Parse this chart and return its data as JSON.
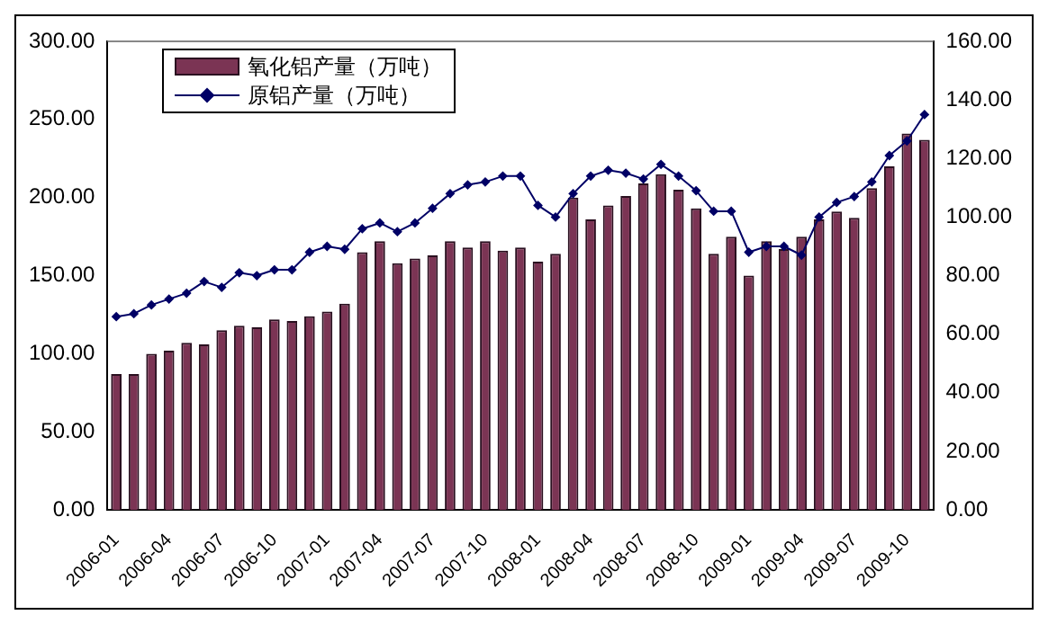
{
  "chart_data": {
    "type": "bar",
    "categories": [
      "2006-01",
      null,
      null,
      "2006-04",
      null,
      null,
      "2006-07",
      null,
      null,
      "2006-10",
      null,
      null,
      "2007-01",
      null,
      null,
      "2007-04",
      null,
      null,
      "2007-07",
      null,
      null,
      "2007-10",
      null,
      null,
      "2008-01",
      null,
      null,
      "2008-04",
      null,
      null,
      "2008-07",
      null,
      null,
      "2008-10",
      null,
      null,
      "2009-01",
      null,
      null,
      "2009-04",
      null,
      null,
      "2009-07",
      null,
      null,
      "2009-10",
      null
    ],
    "series": [
      {
        "name": "氧化铝产量（万吨）",
        "color": "#7b3454",
        "values": [
          87,
          87,
          100,
          102,
          107,
          106,
          115,
          118,
          117,
          122,
          121,
          124,
          127,
          132,
          165,
          172,
          158,
          161,
          163,
          172,
          168,
          172,
          166,
          168,
          159,
          164,
          200,
          186,
          195,
          201,
          209,
          215,
          205,
          193,
          164,
          175,
          150,
          172,
          167,
          175,
          186,
          191,
          187,
          206,
          220,
          241,
          237
        ]
      },
      {
        "name": "原铝产量（万吨）",
        "type": "line",
        "axis": "y2",
        "color": "#000066",
        "values": [
          66,
          67,
          70,
          72,
          74,
          78,
          76,
          81,
          80,
          82,
          82,
          88,
          90,
          89,
          96,
          98,
          95,
          98,
          103,
          108,
          111,
          112,
          114,
          114,
          104,
          100,
          108,
          114,
          116,
          115,
          113,
          118,
          114,
          109,
          102,
          102,
          88,
          90,
          90,
          87,
          100,
          105,
          107,
          112,
          121,
          126,
          135
        ]
      }
    ],
    "ylim": [
      0,
      300
    ],
    "yticks": [
      {
        "value": 0,
        "label": "0.00"
      },
      {
        "value": 50,
        "label": "50.00"
      },
      {
        "value": 100,
        "label": "100.00"
      },
      {
        "value": 150,
        "label": "150.00"
      },
      {
        "value": 200,
        "label": "200.00"
      },
      {
        "value": 250,
        "label": "250.00"
      },
      {
        "value": 300,
        "label": "300.00"
      }
    ],
    "y2lim": [
      0,
      160
    ],
    "y2ticks": [
      {
        "value": 0,
        "label": "0.00"
      },
      {
        "value": 20,
        "label": "20.00"
      },
      {
        "value": 40,
        "label": "40.00"
      },
      {
        "value": 60,
        "label": "60.00"
      },
      {
        "value": 80,
        "label": "80.00"
      },
      {
        "value": 100,
        "label": "100.00"
      },
      {
        "value": 120,
        "label": "120.00"
      },
      {
        "value": 140,
        "label": "140.00"
      },
      {
        "value": 160,
        "label": "160.00"
      }
    ],
    "grid": false,
    "legend": "top left",
    "marker": "diamond",
    "line_style": "solid"
  }
}
